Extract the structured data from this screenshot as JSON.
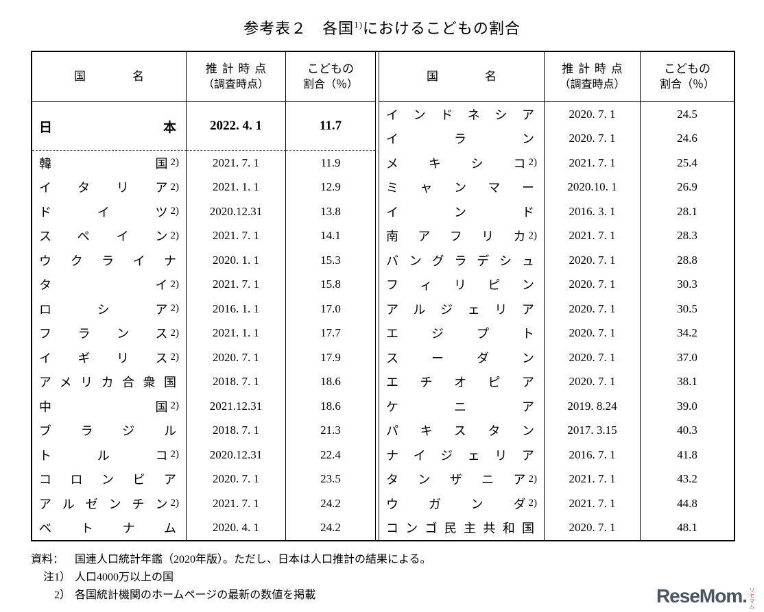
{
  "title": {
    "prefix": "参考表２　各国",
    "sup": "1)",
    "suffix": "におけるこどもの割合"
  },
  "header": {
    "country": "国　　　　名",
    "date_line1": "推計時点",
    "date_line2": "（調査時点）",
    "ratio_line1": "こどもの",
    "ratio_line2": "割合（％）"
  },
  "left": {
    "rows": [
      {
        "name": "日本",
        "note": "",
        "date": "2022. 4. 1",
        "value": "11.7",
        "bold": true
      },
      {
        "name": "韓国",
        "note": "2)",
        "date": "2021. 7. 1",
        "value": "11.9"
      },
      {
        "name": "イタリア",
        "note": "2)",
        "date": "2021. 1. 1",
        "value": "12.9"
      },
      {
        "name": "ドイツ",
        "note": "2)",
        "date": "2020.12.31",
        "value": "13.8"
      },
      {
        "name": "スペイン",
        "note": "2)",
        "date": "2021. 7. 1",
        "value": "14.1"
      },
      {
        "name": "ウクライナ",
        "note": "",
        "date": "2020. 1. 1",
        "value": "15.3"
      },
      {
        "name": "タイ",
        "note": "2)",
        "date": "2021. 7. 1",
        "value": "15.8"
      },
      {
        "name": "ロシア",
        "note": "2)",
        "date": "2016. 1. 1",
        "value": "17.0"
      },
      {
        "name": "フランス",
        "note": "2)",
        "date": "2021. 1. 1",
        "value": "17.7"
      },
      {
        "name": "イギリス",
        "note": "2)",
        "date": "2020. 7. 1",
        "value": "17.9"
      },
      {
        "name": "アメリカ合衆国",
        "note": "",
        "date": "2018. 7. 1",
        "value": "18.6"
      },
      {
        "name": "中国",
        "note": "2)",
        "date": "2021.12.31",
        "value": "18.6"
      },
      {
        "name": "ブラジル",
        "note": "",
        "date": "2018. 7. 1",
        "value": "21.3"
      },
      {
        "name": "トルコ",
        "note": "2)",
        "date": "2020.12.31",
        "value": "22.4"
      },
      {
        "name": "コロンビア",
        "note": "",
        "date": "2020. 7. 1",
        "value": "23.5"
      },
      {
        "name": "アルゼンチン",
        "note": "2)",
        "date": "2021. 7. 1",
        "value": "24.2"
      },
      {
        "name": "ベトナム",
        "note": "",
        "date": "2020. 4. 1",
        "value": "24.2"
      }
    ]
  },
  "right": {
    "rows": [
      {
        "name": "インドネシア",
        "note": "",
        "date": "2020. 7. 1",
        "value": "24.5"
      },
      {
        "name": "イラン",
        "note": "",
        "date": "2020. 7. 1",
        "value": "24.6"
      },
      {
        "name": "メキシコ",
        "note": "2)",
        "date": "2021. 7. 1",
        "value": "25.4"
      },
      {
        "name": "ミャンマー",
        "note": "",
        "date": "2020.10. 1",
        "value": "26.9"
      },
      {
        "name": "インド",
        "note": "",
        "date": "2016. 3. 1",
        "value": "28.1"
      },
      {
        "name": "南アフリカ",
        "note": "2)",
        "date": "2021. 7. 1",
        "value": "28.3"
      },
      {
        "name": "バングラデシュ",
        "note": "",
        "date": "2020. 7. 1",
        "value": "28.8"
      },
      {
        "name": "フィリピン",
        "note": "",
        "date": "2020. 7. 1",
        "value": "30.3"
      },
      {
        "name": "アルジェリア",
        "note": "",
        "date": "2020. 7. 1",
        "value": "30.5"
      },
      {
        "name": "エジプト",
        "note": "",
        "date": "2020. 7. 1",
        "value": "34.2"
      },
      {
        "name": "スーダン",
        "note": "",
        "date": "2020. 7. 1",
        "value": "37.0"
      },
      {
        "name": "エチオピア",
        "note": "",
        "date": "2020. 7. 1",
        "value": "38.1"
      },
      {
        "name": "ケニア",
        "note": "",
        "date": "2019. 8.24",
        "value": "39.0"
      },
      {
        "name": "パキスタン",
        "note": "",
        "date": "2017. 3.15",
        "value": "40.3"
      },
      {
        "name": "ナイジェリア",
        "note": "",
        "date": "2016. 7. 1",
        "value": "41.8"
      },
      {
        "name": "タンザニア",
        "note": "2)",
        "date": "2021. 7. 1",
        "value": "43.2"
      },
      {
        "name": "ウガンダ",
        "note": "2)",
        "date": "2021. 7. 1",
        "value": "44.8"
      },
      {
        "name": "コンゴ民主共和国",
        "note": "",
        "date": "2020. 7. 1",
        "value": "48.1"
      }
    ]
  },
  "notes": [
    {
      "label": "資料：",
      "text": "国連人口統計年鑑（2020年版）。ただし、日本は人口推計の結果による。"
    },
    {
      "label": "注1）",
      "text": "人口4000万以上の国"
    },
    {
      "label": "2）",
      "text": "各国統計機関のホームページの最新の数値を掲載"
    }
  ],
  "logo": {
    "text": "ReseMom.",
    "subtext": "リセマム"
  },
  "colors": {
    "logo_text": "#4a5563",
    "logo_accent": "#d9544a",
    "border": "#000000"
  }
}
